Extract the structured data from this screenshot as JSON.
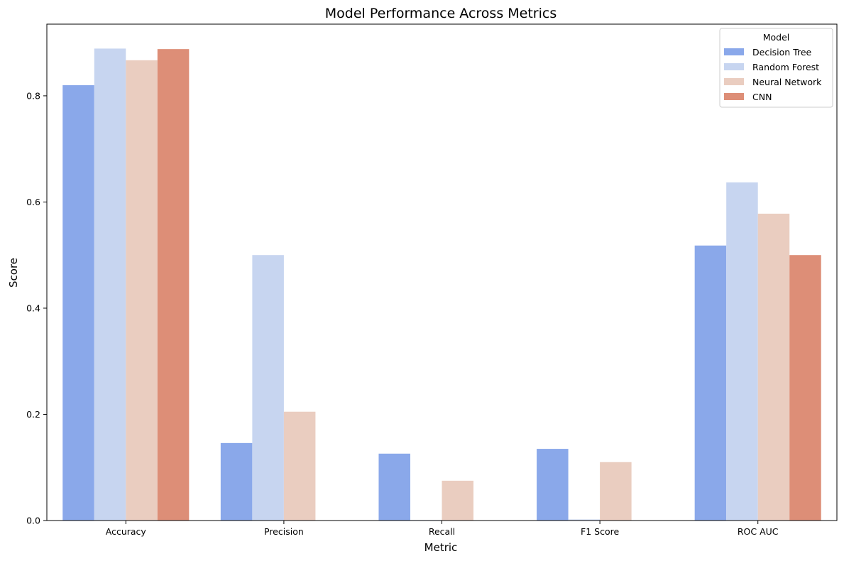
{
  "chart_data": {
    "type": "bar",
    "title": "Model Performance Across Metrics",
    "xlabel": "Metric",
    "ylabel": "Score",
    "categories": [
      "Accuracy",
      "Precision",
      "Recall",
      "F1 Score",
      "ROC AUC"
    ],
    "ylim": [
      0,
      0.935
    ],
    "yticks": [
      0.0,
      0.2,
      0.4,
      0.6,
      0.8
    ],
    "ytick_labels": [
      "0.0",
      "0.2",
      "0.4",
      "0.6",
      "0.8"
    ],
    "grid": false,
    "legend": {
      "title": "Model",
      "placement": "top-right"
    },
    "series": [
      {
        "name": "Decision Tree",
        "color": "#8aa8ea",
        "values": [
          0.82,
          0.146,
          0.126,
          0.135,
          0.518
        ]
      },
      {
        "name": "Random Forest",
        "color": "#c7d5f0",
        "values": [
          0.889,
          0.5,
          0.001,
          0.002,
          0.637
        ]
      },
      {
        "name": "Neural Network",
        "color": "#eacdc0",
        "values": [
          0.867,
          0.205,
          0.075,
          0.11,
          0.578
        ]
      },
      {
        "name": "CNN",
        "color": "#dd8e77",
        "values": [
          0.888,
          0.0,
          0.0,
          0.0,
          0.5
        ]
      }
    ]
  }
}
